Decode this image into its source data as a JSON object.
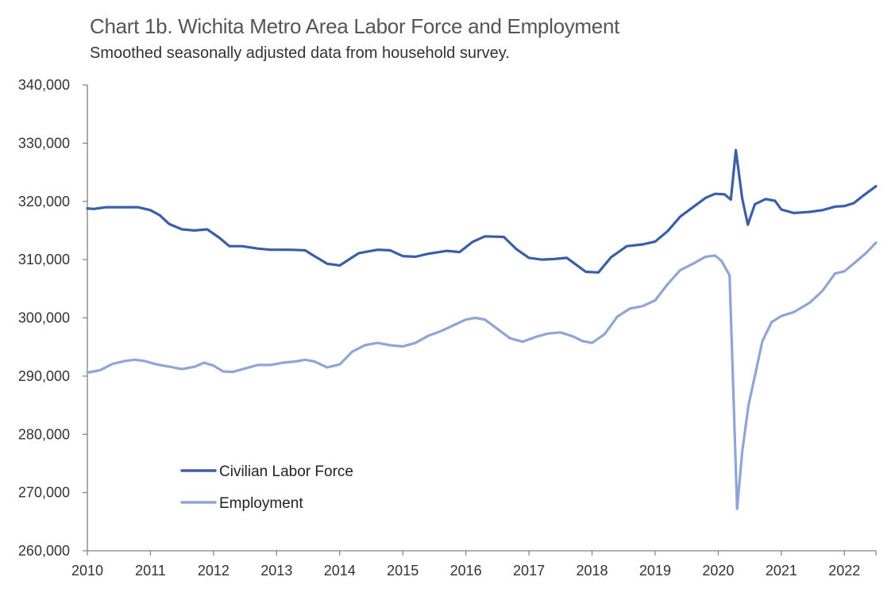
{
  "title": "Chart 1b. Wichita Metro Area Labor Force and Employment",
  "subtitle": "Smoothed seasonally adjusted data from household survey.",
  "chart_data": {
    "type": "line",
    "ylim": [
      260000,
      340000
    ],
    "xlim": [
      2010,
      2022.5
    ],
    "y_ticks": [
      260000,
      270000,
      280000,
      290000,
      300000,
      310000,
      320000,
      330000,
      340000
    ],
    "y_tick_labels": [
      "260,000",
      "270,000",
      "280,000",
      "290,000",
      "300,000",
      "310,000",
      "320,000",
      "330,000",
      "340,000"
    ],
    "x_ticks": [
      2010,
      2011,
      2012,
      2013,
      2014,
      2015,
      2016,
      2017,
      2018,
      2019,
      2020,
      2021,
      2022
    ],
    "x_tick_labels": [
      "2010",
      "2011",
      "2012",
      "2013",
      "2014",
      "2015",
      "2016",
      "2017",
      "2018",
      "2019",
      "2020",
      "2021",
      "2022"
    ],
    "grid": false,
    "legend_position": "bottom-left",
    "series": [
      {
        "name": "Civilian Labor Force",
        "color": "#3a5fa8",
        "x": [
          2010.0,
          2010.1,
          2010.3,
          2010.6,
          2010.8,
          2011.0,
          2011.15,
          2011.3,
          2011.5,
          2011.7,
          2011.9,
          2012.1,
          2012.25,
          2012.45,
          2012.7,
          2012.9,
          2013.2,
          2013.45,
          2013.6,
          2013.8,
          2014.0,
          2014.3,
          2014.6,
          2014.8,
          2015.0,
          2015.2,
          2015.4,
          2015.7,
          2015.9,
          2016.1,
          2016.3,
          2016.6,
          2016.8,
          2017.0,
          2017.2,
          2017.4,
          2017.6,
          2017.75,
          2017.9,
          2018.1,
          2018.3,
          2018.55,
          2018.8,
          2019.0,
          2019.2,
          2019.4,
          2019.6,
          2019.8,
          2019.95,
          2020.1,
          2020.2,
          2020.28,
          2020.38,
          2020.47,
          2020.58,
          2020.75,
          2020.9,
          2021.0,
          2021.2,
          2021.45,
          2021.65,
          2021.85,
          2022.0,
          2022.15,
          2022.3,
          2022.5
        ],
        "values": [
          318800,
          318700,
          319000,
          319000,
          319000,
          318500,
          317600,
          316100,
          315200,
          315000,
          315200,
          313700,
          312300,
          312300,
          311900,
          311700,
          311700,
          311600,
          310600,
          309300,
          309000,
          311100,
          311700,
          311600,
          310600,
          310500,
          311000,
          311500,
          311300,
          313000,
          314000,
          313900,
          311800,
          310300,
          310000,
          310100,
          310300,
          309100,
          307900,
          307800,
          310400,
          312300,
          312600,
          313100,
          314900,
          317400,
          319000,
          320600,
          321300,
          321200,
          320300,
          328800,
          320500,
          316000,
          319500,
          320400,
          320100,
          318600,
          318000,
          318200,
          318500,
          319100,
          319200,
          319700,
          321000,
          322600
        ]
      },
      {
        "name": "Employment",
        "color": "#8fa5d6",
        "x": [
          2010.0,
          2010.2,
          2010.4,
          2010.6,
          2010.75,
          2010.9,
          2011.1,
          2011.3,
          2011.5,
          2011.7,
          2011.85,
          2012.0,
          2012.15,
          2012.3,
          2012.5,
          2012.7,
          2012.9,
          2013.1,
          2013.3,
          2013.45,
          2013.6,
          2013.8,
          2014.0,
          2014.2,
          2014.4,
          2014.6,
          2014.8,
          2015.0,
          2015.2,
          2015.4,
          2015.6,
          2015.8,
          2016.0,
          2016.15,
          2016.3,
          2016.5,
          2016.7,
          2016.9,
          2017.1,
          2017.3,
          2017.5,
          2017.7,
          2017.85,
          2018.0,
          2018.2,
          2018.4,
          2018.6,
          2018.8,
          2019.0,
          2019.2,
          2019.4,
          2019.6,
          2019.8,
          2019.95,
          2020.05,
          2020.18,
          2020.3,
          2020.38,
          2020.48,
          2020.58,
          2020.7,
          2020.85,
          2021.0,
          2021.2,
          2021.45,
          2021.65,
          2021.85,
          2022.0,
          2022.2,
          2022.35,
          2022.5
        ],
        "values": [
          290600,
          291000,
          292100,
          292600,
          292800,
          292600,
          292000,
          291600,
          291200,
          291600,
          292300,
          291800,
          290800,
          290700,
          291300,
          291900,
          291900,
          292300,
          292500,
          292800,
          292500,
          291500,
          292000,
          294200,
          295300,
          295700,
          295300,
          295100,
          295700,
          296900,
          297700,
          298700,
          299700,
          300000,
          299700,
          298100,
          296500,
          295900,
          296700,
          297300,
          297500,
          296800,
          296000,
          295700,
          297200,
          300200,
          301600,
          302000,
          303000,
          305800,
          308200,
          309300,
          310500,
          310700,
          309800,
          307300,
          267200,
          277000,
          285000,
          290000,
          296000,
          299300,
          300300,
          301000,
          302600,
          304600,
          307600,
          308000,
          309800,
          311200,
          312900
        ]
      }
    ]
  }
}
